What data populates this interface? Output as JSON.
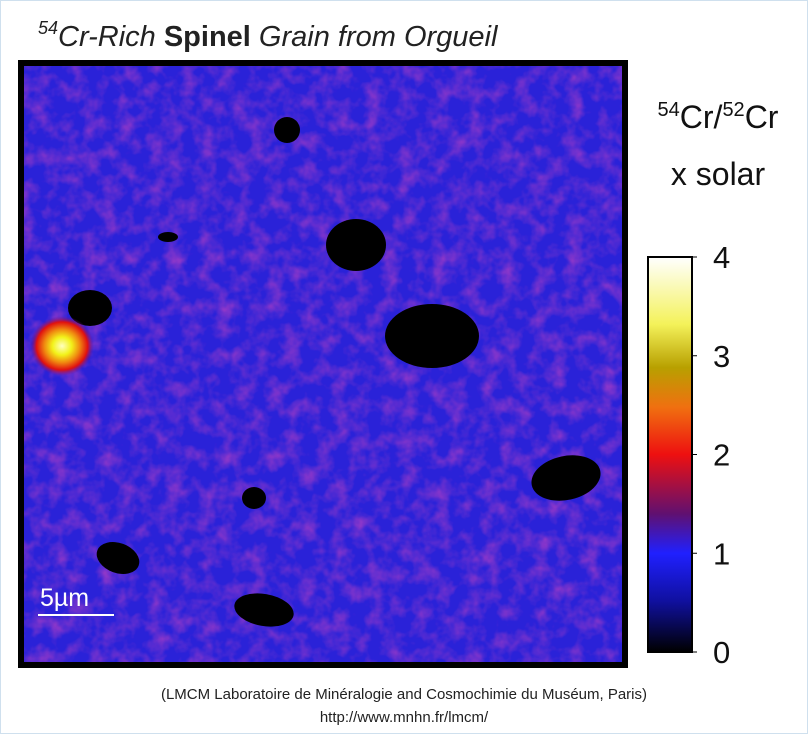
{
  "title": {
    "superscript": "54",
    "part1": "Cr-Rich ",
    "bold": "Spinel",
    "part2": " Grain from Orgueil"
  },
  "colorbar": {
    "label_sup1": "54",
    "label_part1": "Cr/",
    "label_sup2": "52",
    "label_part2": "Cr",
    "label_line2": "x solar",
    "lim": [
      0,
      4
    ],
    "ticks": [
      0,
      1,
      2,
      3,
      4
    ]
  },
  "scale_bar": {
    "label": "5µm"
  },
  "credit": {
    "line1": "(LMCM Laboratoire de Minéralogie and Cosmochimie du Muséum, Paris)",
    "line2": "http://www.mnhn.fr/lmcm/"
  }
}
